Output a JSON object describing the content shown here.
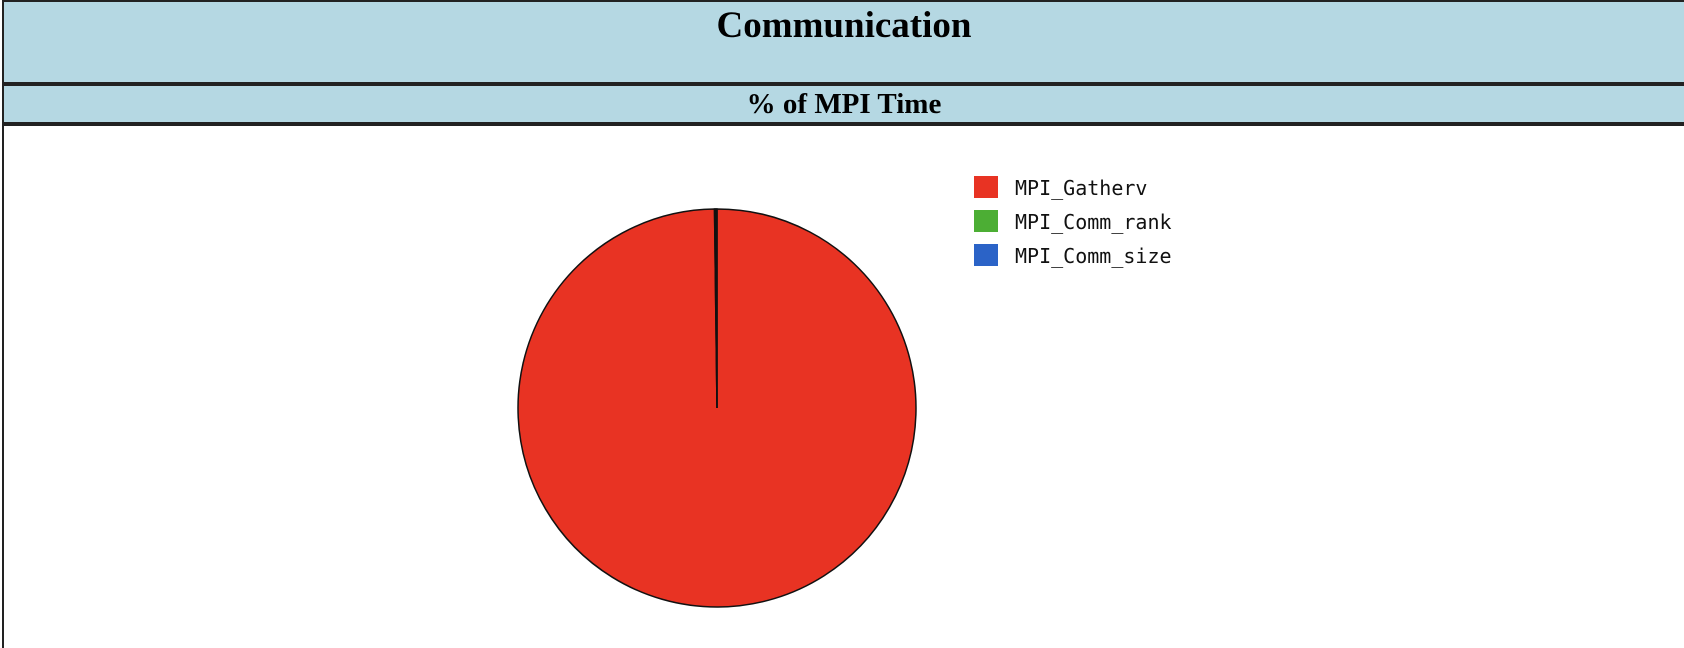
{
  "page": {
    "title": "Communication",
    "subtitle": "% of MPI Time"
  },
  "chart_data": {
    "type": "pie",
    "title": "",
    "legend_position": "right",
    "slices": [
      {
        "label": "MPI_Gatherv",
        "value": 99.8,
        "color": "#e83323"
      },
      {
        "label": "MPI_Comm_rank",
        "value": 0.1,
        "color": "#4cae34"
      },
      {
        "label": "MPI_Comm_size",
        "value": 0.1,
        "color": "#2b63c7"
      }
    ]
  }
}
